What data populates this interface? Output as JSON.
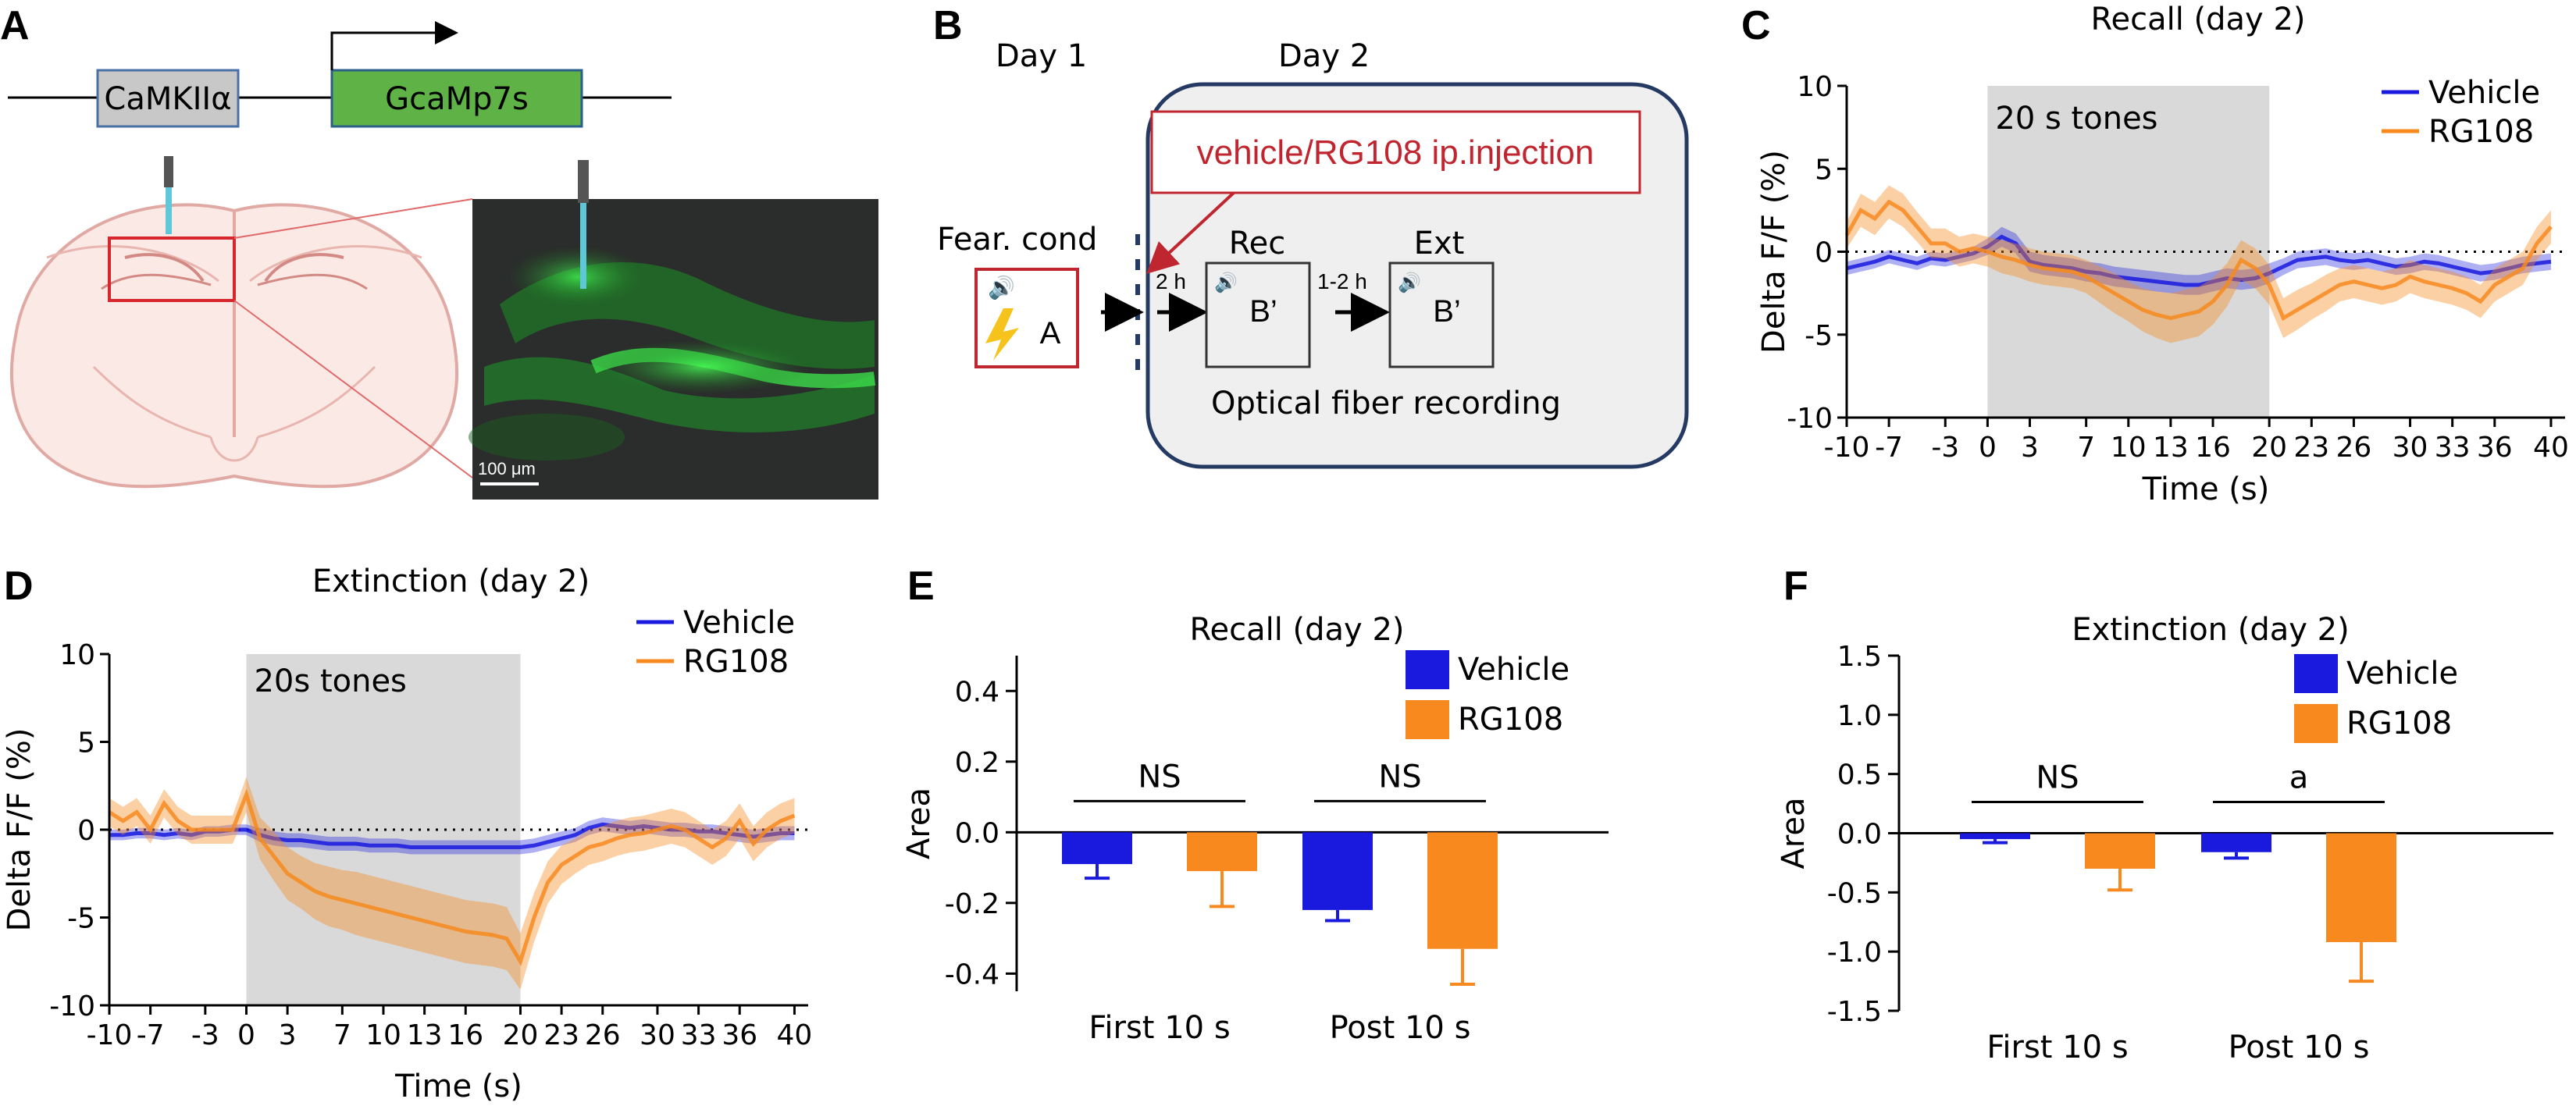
{
  "panels": {
    "A": {
      "label": "A",
      "promoter": "CaMKIIα",
      "gene": "GcaMp7s",
      "scalebar": "100 μm",
      "colors": {
        "promoter_box": "#c8c8c8",
        "gene_box": "#5fb346",
        "fluor": "#2fd03a"
      }
    },
    "B": {
      "label": "B",
      "day1": "Day 1",
      "day2": "Day 2",
      "injection": "vehicle/RG108 ip.injection",
      "fear_cond": "Fear. cond",
      "ctx_a": "A",
      "ctx_b1": "B’",
      "ctx_b2": "B’",
      "rec": "Rec",
      "ext": "Ext",
      "interval1": "2 h",
      "interval2": "1-2 h",
      "optical": "Optical fiber recording",
      "colors": {
        "red": "#c0262f",
        "box_fill": "#efefef",
        "border": "#243a63"
      }
    },
    "C": {
      "label": "C"
    },
    "D": {
      "label": "D"
    },
    "E": {
      "label": "E"
    },
    "F": {
      "label": "F"
    }
  },
  "colors": {
    "vehicle": "#1a1adf",
    "rg108": "#f7891e",
    "tone_shade": "#d9d9d9"
  },
  "chart_data": [
    {
      "id": "C",
      "type": "line",
      "title": "Recall (day 2)",
      "xlabel": "Time (s)",
      "ylabel": "Delta F/F (%)",
      "xlim": [
        -10,
        41
      ],
      "ylim": [
        -10,
        10
      ],
      "xticks": [
        -10,
        -7,
        -3,
        0,
        3,
        7,
        10,
        13,
        16,
        20,
        23,
        26,
        30,
        33,
        36,
        40
      ],
      "yticks": [
        10,
        5,
        0,
        -5,
        -10
      ],
      "shade": {
        "x0": 0,
        "x1": 20,
        "label": "20 s tones"
      },
      "legend": "top-right",
      "series": [
        {
          "name": "Vehicle",
          "x": [
            -10,
            -9,
            -8,
            -7,
            -6,
            -5,
            -4,
            -3,
            -2,
            -1,
            0,
            1,
            2,
            3,
            4,
            5,
            6,
            7,
            8,
            9,
            10,
            11,
            12,
            13,
            14,
            15,
            16,
            17,
            18,
            19,
            20,
            21,
            22,
            23,
            24,
            25,
            26,
            27,
            28,
            29,
            30,
            31,
            32,
            33,
            34,
            35,
            36,
            37,
            38,
            39,
            40
          ],
          "mean": [
            -1,
            -0.8,
            -0.6,
            -0.3,
            -0.5,
            -0.7,
            -0.4,
            -0.5,
            -0.3,
            -0.1,
            0.3,
            0.9,
            0.5,
            -0.6,
            -0.8,
            -0.9,
            -1.0,
            -1.2,
            -1.3,
            -1.5,
            -1.6,
            -1.7,
            -1.8,
            -1.9,
            -2.0,
            -2.0,
            -1.8,
            -1.6,
            -1.7,
            -1.6,
            -1.3,
            -0.9,
            -0.5,
            -0.4,
            -0.3,
            -0.5,
            -0.6,
            -0.5,
            -0.7,
            -0.9,
            -0.8,
            -0.6,
            -0.7,
            -0.9,
            -1.1,
            -1.3,
            -1.2,
            -1.0,
            -0.8,
            -0.7,
            -0.6
          ],
          "sem": [
            0.4,
            0.4,
            0.4,
            0.4,
            0.4,
            0.4,
            0.4,
            0.4,
            0.4,
            0.4,
            0.5,
            0.6,
            0.6,
            0.6,
            0.6,
            0.6,
            0.6,
            0.6,
            0.6,
            0.6,
            0.6,
            0.6,
            0.6,
            0.6,
            0.6,
            0.6,
            0.6,
            0.6,
            0.6,
            0.6,
            0.6,
            0.5,
            0.5,
            0.5,
            0.5,
            0.5,
            0.5,
            0.5,
            0.5,
            0.5,
            0.5,
            0.5,
            0.5,
            0.5,
            0.5,
            0.5,
            0.5,
            0.5,
            0.5,
            0.5,
            0.5
          ]
        },
        {
          "name": "RG108",
          "x": [
            -10,
            -9,
            -8,
            -7,
            -6,
            -5,
            -4,
            -3,
            -2,
            -1,
            0,
            1,
            2,
            3,
            4,
            5,
            6,
            7,
            8,
            9,
            10,
            11,
            12,
            13,
            14,
            15,
            16,
            17,
            18,
            19,
            20,
            21,
            22,
            23,
            24,
            25,
            26,
            27,
            28,
            29,
            30,
            31,
            32,
            33,
            34,
            35,
            36,
            37,
            38,
            39,
            40
          ],
          "mean": [
            1,
            2.5,
            2,
            3,
            2.5,
            1.5,
            0.5,
            0.5,
            0,
            0.2,
            0,
            -0.3,
            -0.5,
            -0.8,
            -1.0,
            -1.1,
            -1.2,
            -1.5,
            -2.0,
            -2.5,
            -3.0,
            -3.5,
            -3.8,
            -4.0,
            -3.8,
            -3.6,
            -3.0,
            -2.0,
            -0.5,
            -1.0,
            -2.0,
            -4.0,
            -3.5,
            -3.0,
            -2.5,
            -2.0,
            -1.8,
            -2.0,
            -2.2,
            -2.0,
            -1.5,
            -1.8,
            -2.0,
            -2.2,
            -2.5,
            -3.0,
            -2.0,
            -1.5,
            -1.0,
            0.5,
            1.5
          ],
          "sem": [
            0.8,
            1.0,
            1.0,
            1.0,
            1.0,
            0.9,
            0.9,
            0.9,
            0.9,
            0.9,
            0.9,
            1.0,
            1.0,
            1.0,
            1.0,
            1.0,
            1.0,
            1.0,
            1.1,
            1.2,
            1.2,
            1.3,
            1.4,
            1.5,
            1.5,
            1.5,
            1.4,
            1.3,
            1.2,
            1.2,
            1.2,
            1.2,
            1.2,
            1.1,
            1.1,
            1.0,
            1.0,
            1.0,
            1.0,
            1.0,
            1.0,
            1.0,
            1.0,
            1.0,
            1.0,
            1.0,
            1.0,
            1.0,
            1.0,
            1.0,
            1.0
          ]
        }
      ]
    },
    {
      "id": "D",
      "type": "line",
      "title": "Extinction (day 2)",
      "xlabel": "Time (s)",
      "ylabel": "Delta F/F (%)",
      "xlim": [
        -10,
        41
      ],
      "ylim": [
        -10,
        10
      ],
      "xticks": [
        -10,
        -7,
        -3,
        0,
        3,
        7,
        10,
        13,
        16,
        20,
        23,
        26,
        30,
        33,
        36,
        40
      ],
      "yticks": [
        10,
        5,
        0,
        -5,
        -10
      ],
      "shade": {
        "x0": 0,
        "x1": 20,
        "label": "20s tones"
      },
      "legend": "top-right",
      "series": [
        {
          "name": "Vehicle",
          "x": [
            -10,
            -9,
            -8,
            -7,
            -6,
            -5,
            -4,
            -3,
            -2,
            -1,
            0,
            1,
            2,
            3,
            4,
            5,
            6,
            7,
            8,
            9,
            10,
            11,
            12,
            13,
            14,
            15,
            16,
            17,
            18,
            19,
            20,
            21,
            22,
            23,
            24,
            25,
            26,
            27,
            28,
            29,
            30,
            31,
            32,
            33,
            34,
            35,
            36,
            37,
            38,
            39,
            40
          ],
          "mean": [
            -0.3,
            -0.3,
            -0.2,
            -0.2,
            -0.3,
            -0.2,
            -0.3,
            -0.1,
            -0.1,
            0,
            0,
            -0.3,
            -0.5,
            -0.6,
            -0.6,
            -0.7,
            -0.8,
            -0.8,
            -0.8,
            -0.9,
            -0.9,
            -0.9,
            -1.0,
            -1.0,
            -1.0,
            -1.0,
            -1.0,
            -1.0,
            -1.0,
            -1.0,
            -1.0,
            -0.9,
            -0.7,
            -0.5,
            -0.3,
            0.1,
            0.3,
            0.2,
            0.1,
            0.2,
            0.1,
            0.0,
            0.0,
            -0.1,
            -0.1,
            -0.2,
            -0.3,
            -0.4,
            -0.3,
            -0.2,
            -0.2
          ],
          "sem": [
            0.3,
            0.3,
            0.3,
            0.3,
            0.3,
            0.3,
            0.3,
            0.3,
            0.3,
            0.3,
            0.3,
            0.4,
            0.4,
            0.4,
            0.4,
            0.4,
            0.4,
            0.4,
            0.4,
            0.4,
            0.4,
            0.4,
            0.4,
            0.4,
            0.4,
            0.4,
            0.4,
            0.4,
            0.4,
            0.4,
            0.4,
            0.4,
            0.4,
            0.4,
            0.4,
            0.4,
            0.4,
            0.4,
            0.4,
            0.4,
            0.4,
            0.4,
            0.4,
            0.4,
            0.4,
            0.4,
            0.4,
            0.4,
            0.4,
            0.4,
            0.4
          ]
        },
        {
          "name": "RG108",
          "x": [
            -10,
            -9,
            -8,
            -7,
            -6,
            -5,
            -4,
            -3,
            -2,
            -1,
            0,
            1,
            2,
            3,
            4,
            5,
            6,
            7,
            8,
            9,
            10,
            11,
            12,
            13,
            14,
            15,
            16,
            17,
            18,
            19,
            20,
            21,
            22,
            23,
            24,
            25,
            26,
            27,
            28,
            29,
            30,
            31,
            32,
            33,
            34,
            35,
            36,
            37,
            38,
            39,
            40
          ],
          "mean": [
            1,
            0.5,
            1,
            0,
            1.5,
            0.5,
            0,
            0,
            0,
            0,
            2,
            -0.5,
            -1.5,
            -2.5,
            -3.0,
            -3.5,
            -3.8,
            -4.0,
            -4.2,
            -4.4,
            -4.6,
            -4.8,
            -5.0,
            -5.2,
            -5.4,
            -5.6,
            -5.8,
            -5.9,
            -6.0,
            -6.2,
            -7.5,
            -5,
            -3,
            -2,
            -1.5,
            -1,
            -0.8,
            -0.5,
            -0.3,
            -0.2,
            0,
            0.2,
            0,
            -0.5,
            -1,
            -0.5,
            0.5,
            -0.8,
            0,
            0.5,
            0.8
          ],
          "sem": [
            0.8,
            0.8,
            0.8,
            0.8,
            0.8,
            0.8,
            0.8,
            0.8,
            0.8,
            0.8,
            1.0,
            1.2,
            1.4,
            1.5,
            1.5,
            1.6,
            1.7,
            1.7,
            1.8,
            1.8,
            1.8,
            1.8,
            1.8,
            1.8,
            1.8,
            1.8,
            1.8,
            1.8,
            1.8,
            1.8,
            1.6,
            1.4,
            1.2,
            1.1,
            1.0,
            1.0,
            1.0,
            1.0,
            1.0,
            1.0,
            1.0,
            1.0,
            1.0,
            1.0,
            1.0,
            1.0,
            1.0,
            1.0,
            1.0,
            1.0,
            1.0
          ]
        }
      ]
    },
    {
      "id": "E",
      "type": "bar",
      "title": "Recall (day 2)",
      "ylabel": "Area",
      "categories": [
        "First 10 s",
        "Post 10 s"
      ],
      "ylim": [
        -0.45,
        0.5
      ],
      "yticks": [
        0.4,
        0.2,
        0.0,
        -0.2,
        -0.4
      ],
      "yticklabels": [
        "0.4",
        "0.2",
        "0.0",
        "-0.2",
        "-0.4"
      ],
      "legend": "top-right",
      "series": [
        {
          "name": "Vehicle",
          "values": [
            -0.09,
            -0.22
          ],
          "err": [
            0.04,
            0.03
          ]
        },
        {
          "name": "RG108",
          "values": [
            -0.11,
            -0.33
          ],
          "err": [
            0.1,
            0.1
          ]
        }
      ],
      "significance": [
        "NS",
        "NS"
      ]
    },
    {
      "id": "F",
      "type": "bar",
      "title": "Extinction (day 2)",
      "ylabel": "Area",
      "categories": [
        "First 10 s",
        "Post 10 s"
      ],
      "ylim": [
        -1.5,
        1.5
      ],
      "yticks": [
        1.5,
        1.0,
        0.5,
        0.0,
        -0.5,
        -1.0,
        -1.5
      ],
      "yticklabels": [
        "1.5",
        "1.0",
        "0.5",
        "0.0",
        "-0.5",
        "-1.0",
        "-1.5"
      ],
      "legend": "top-right",
      "series": [
        {
          "name": "Vehicle",
          "values": [
            -0.05,
            -0.16
          ],
          "err": [
            0.03,
            0.05
          ]
        },
        {
          "name": "RG108",
          "values": [
            -0.3,
            -0.92
          ],
          "err": [
            0.18,
            0.33
          ]
        }
      ],
      "significance": [
        "NS",
        "a"
      ]
    }
  ]
}
